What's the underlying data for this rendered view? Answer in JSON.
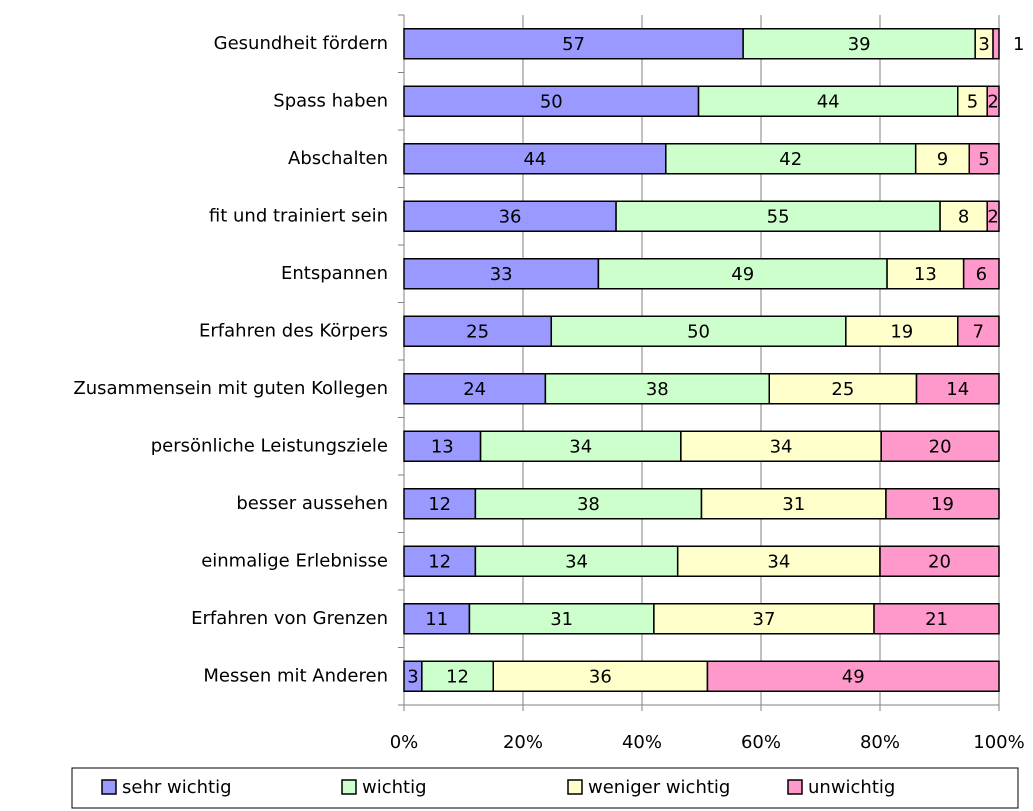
{
  "chart_data": {
    "type": "bar",
    "orientation": "horizontal",
    "stacking": "percent",
    "categories": [
      "Gesundheit fördern",
      "Spass haben",
      "Abschalten",
      "fit und trainiert sein",
      "Entspannen",
      "Erfahren des Körpers",
      "Zusammensein mit guten Kollegen",
      "persönliche Leistungsziele ",
      "besser aussehen",
      "einmalige Erlebnisse",
      "Erfahren von Grenzen",
      "Messen mit Anderen"
    ],
    "series": [
      {
        "name": "sehr wichtig",
        "color": "#9999ff",
        "values": [
          57,
          50,
          44,
          36,
          33,
          25,
          24,
          13,
          12,
          12,
          11,
          3
        ]
      },
      {
        "name": "wichtig",
        "color": "#ccffcc",
        "values": [
          39,
          44,
          42,
          55,
          49,
          50,
          38,
          34,
          38,
          34,
          31,
          12
        ]
      },
      {
        "name": "weniger wichtig",
        "color": "#ffffcc",
        "values": [
          3,
          5,
          9,
          8,
          13,
          19,
          25,
          34,
          31,
          34,
          37,
          36
        ]
      },
      {
        "name": "unwichtig",
        "color": "#ff99cc",
        "values": [
          1,
          2,
          5,
          2,
          6,
          7,
          14,
          20,
          19,
          20,
          21,
          49
        ]
      }
    ],
    "xlim": [
      0,
      100
    ],
    "xticks": [
      {
        "value": 0,
        "label": "0%"
      },
      {
        "value": 20,
        "label": "20%"
      },
      {
        "value": 40,
        "label": "40%"
      },
      {
        "value": 60,
        "label": "60%"
      },
      {
        "value": 80,
        "label": "80%"
      },
      {
        "value": 100,
        "label": "100%"
      }
    ],
    "grid": true,
    "legend": "bottom"
  }
}
